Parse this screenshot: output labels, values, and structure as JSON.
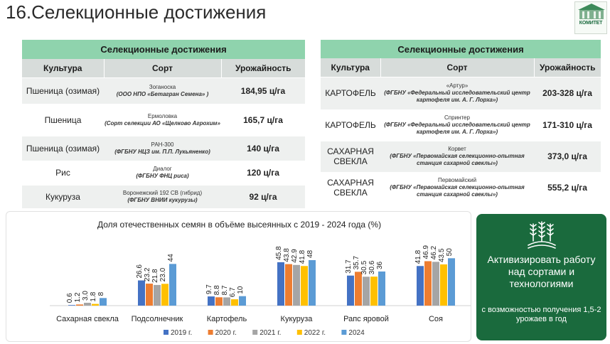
{
  "title": "16.Селекционные достижения",
  "logo": {
    "text": "КОМИТЕТ"
  },
  "left_table": {
    "caption": "Селекционные достижения",
    "headers": [
      "Культура",
      "Сорт",
      "Урожайность"
    ],
    "rows": [
      {
        "crop": "Пшеница (озимая)",
        "sort": "Зоганоска",
        "org": "(ООО НПО «Бетагран Семена» )",
        "yield": "184,95 ц/га"
      },
      {
        "crop": "Пшеница",
        "sort": "Ермоловка",
        "org": "(Сорт селекции АО «Щелково Агрохим»",
        "yield": "165,7 ц/га"
      },
      {
        "crop": "Пшеница (озимая)",
        "sort": "РАН-300",
        "org": "(ФГБНУ НЦЗ им. П.П. Лукьяненко)",
        "yield": "140 ц/га"
      },
      {
        "crop": "Рис",
        "sort": "Диалог",
        "org": "(ФГБНУ ФНЦ риса)",
        "yield": "120 ц/га"
      },
      {
        "crop": "Кукуруза",
        "sort": "Воронежский 192 СВ (гибрид)",
        "org": "(ФГБНУ ВНИИ кукурузы)",
        "yield": "92 ц/га"
      }
    ]
  },
  "right_table": {
    "caption": "Селекционные достижения",
    "headers": [
      "Культура",
      "Сорт",
      "Урожайность"
    ],
    "rows": [
      {
        "crop": "КАРТОФЕЛЬ",
        "sort": "«Артур»",
        "org": "(ФГБНУ «Федеральный исследовательский центр картофеля им. А. Г. Лорха»)",
        "yield": "203-328 ц/га"
      },
      {
        "crop": "КАРТОФЕЛЬ",
        "sort": "Спринтер",
        "org": "(ФГБНУ «Федеральный исследовательский центр картофеля им. А. Г. Лорха»)",
        "yield": "171-310 ц/га"
      },
      {
        "crop": "САХАРНАЯ СВЕКЛА",
        "sort": "Корвет",
        "org": "(ФГБНУ «Первомайская селекционно-опытная станция сахарной свеклы»)",
        "yield": "373,0 ц/га"
      },
      {
        "crop": "САХАРНАЯ СВЕКЛА",
        "sort": "Первомайский",
        "org": "(ФГБНУ «Первомайская селекционно-опытная станция сахарной свеклы»)",
        "yield": "555,2 ц/га"
      }
    ]
  },
  "chart_data": {
    "type": "bar",
    "title": "Доля отечественных семян в объёме высеянных с 2019 - 2024 года (%)",
    "categories": [
      "Сахарная свекла",
      "Подсолнечник",
      "Картофель",
      "Кукуруза",
      "Рапс яровой",
      "Соя"
    ],
    "series": [
      {
        "name": "2019 г.",
        "color": "#4472c4",
        "values": [
          0.6,
          26.6,
          9.7,
          45.8,
          31.7,
          41.8
        ],
        "labels": [
          "0.6",
          "26.6",
          "9.7",
          "45.8",
          "31.7",
          "41.8"
        ]
      },
      {
        "name": "2020 г.",
        "color": "#ed7d31",
        "values": [
          1.2,
          23.2,
          8.8,
          43.8,
          35.7,
          46.9
        ],
        "labels": [
          "1.2",
          "23.2",
          "8.8",
          "43.8",
          "35.7",
          "46.9"
        ]
      },
      {
        "name": "2021 г.",
        "color": "#a5a5a5",
        "values": [
          3.0,
          21.8,
          8.7,
          42.9,
          30.5,
          46.2
        ],
        "labels": [
          "3.0",
          "21.8",
          "8.7",
          "42.9",
          "30.5",
          "46.2"
        ]
      },
      {
        "name": "2022 г.",
        "color": "#ffc000",
        "values": [
          1.8,
          23.0,
          6.7,
          41.8,
          30.6,
          43.5
        ],
        "labels": [
          "1.8",
          "23.0",
          "6.7",
          "41.8",
          "30.6",
          "43.5"
        ]
      },
      {
        "name": "2024",
        "color": "#5b9bd5",
        "values": [
          8,
          44,
          10,
          48,
          36,
          50
        ],
        "labels": [
          "8",
          "44",
          "10",
          "48",
          "36",
          "50"
        ]
      }
    ],
    "ylim": [
      0,
      60
    ],
    "legend": "bottom"
  },
  "promo": {
    "main": "Активизировать работу над сортами и технологиями",
    "sub": "с возможностью получения 1,5-2 урожаев в год"
  }
}
